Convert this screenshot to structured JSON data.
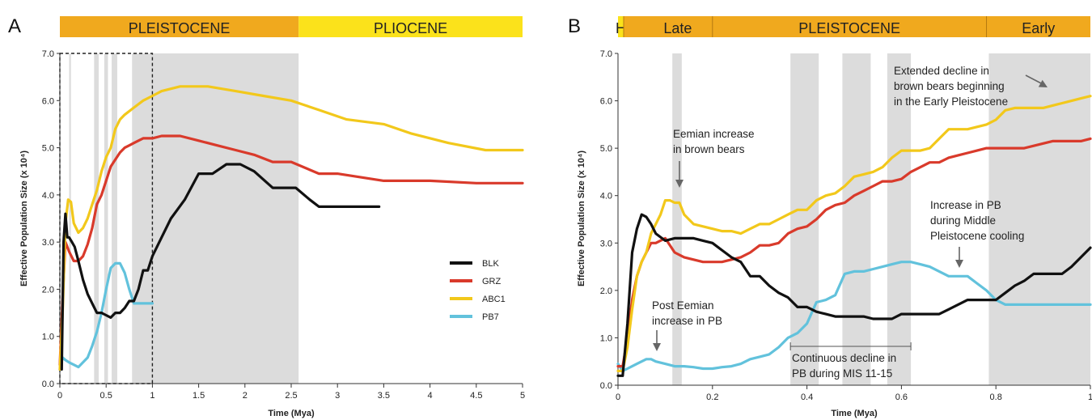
{
  "colors": {
    "BLK": "#111111",
    "GRZ": "#d93a2b",
    "ABC1": "#f2c81b",
    "PB7": "#62c2dc",
    "epoch_orange": "#f0a91e",
    "epoch_yellow": "#fbe21b",
    "shade": "#dcdcdc",
    "arrow": "#666666"
  },
  "chart_data": [
    {
      "panel": "A",
      "type": "line",
      "xlabel": "Time (Mya)",
      "ylabel": "Effective Population Size (x 10⁴)",
      "xlim": [
        0,
        5
      ],
      "ylim": [
        0,
        7
      ],
      "x_ticks": [
        "0",
        "0.5",
        "1",
        "1.5",
        "2",
        "2.5",
        "3",
        "3.5",
        "4",
        "4.5",
        "5"
      ],
      "y_ticks": [
        "0.0",
        "1.0",
        "2.0",
        "3.0",
        "4.0",
        "5.0",
        "6.0",
        "7.0"
      ],
      "epochs": [
        {
          "label": "PLEISTOCENE",
          "from": 0,
          "to": 2.58,
          "color": "orange"
        },
        {
          "label": "PLIOCENE",
          "from": 2.58,
          "to": 5,
          "color": "yellow"
        }
      ],
      "shaded_intervals": [
        [
          0.1,
          0.12
        ],
        [
          0.37,
          0.42
        ],
        [
          0.48,
          0.52
        ],
        [
          0.56,
          0.62
        ],
        [
          0.78,
          2.58
        ]
      ],
      "zoom_box": {
        "x": [
          0,
          1
        ],
        "y": [
          0,
          7
        ]
      },
      "legend": {
        "position": "right",
        "entries": [
          "BLK",
          "GRZ",
          "ABC1",
          "PB7"
        ]
      },
      "series": [
        {
          "name": "BLK",
          "x": [
            0.02,
            0.04,
            0.06,
            0.08,
            0.1,
            0.13,
            0.16,
            0.2,
            0.25,
            0.3,
            0.35,
            0.4,
            0.45,
            0.5,
            0.55,
            0.6,
            0.65,
            0.7,
            0.75,
            0.8,
            0.85,
            0.9,
            0.95,
            1.0,
            1.1,
            1.2,
            1.35,
            1.5,
            1.65,
            1.8,
            1.95,
            2.1,
            2.3,
            2.55,
            2.7,
            2.8,
            3.0,
            3.45
          ],
          "y": [
            0.3,
            3.0,
            3.6,
            3.1,
            3.1,
            3.0,
            2.9,
            2.6,
            2.2,
            1.9,
            1.7,
            1.5,
            1.5,
            1.45,
            1.4,
            1.5,
            1.5,
            1.6,
            1.75,
            1.75,
            2.0,
            2.4,
            2.4,
            2.7,
            3.1,
            3.5,
            3.9,
            4.45,
            4.45,
            4.65,
            4.65,
            4.5,
            4.15,
            4.15,
            3.9,
            3.75,
            3.75,
            3.75
          ]
        },
        {
          "name": "GRZ",
          "x": [
            0.0,
            0.03,
            0.06,
            0.1,
            0.15,
            0.2,
            0.25,
            0.3,
            0.35,
            0.4,
            0.45,
            0.5,
            0.55,
            0.6,
            0.65,
            0.7,
            0.75,
            0.8,
            0.85,
            0.9,
            1.0,
            1.1,
            1.3,
            1.5,
            1.7,
            1.9,
            2.1,
            2.3,
            2.5,
            2.8,
            3.0,
            3.5,
            4.0,
            4.5,
            5.0
          ],
          "y": [
            0.4,
            1.8,
            3.0,
            2.8,
            2.6,
            2.6,
            2.7,
            2.95,
            3.3,
            3.8,
            4.0,
            4.3,
            4.6,
            4.75,
            4.9,
            5.0,
            5.05,
            5.1,
            5.15,
            5.2,
            5.2,
            5.25,
            5.25,
            5.15,
            5.05,
            4.95,
            4.85,
            4.7,
            4.7,
            4.45,
            4.45,
            4.3,
            4.3,
            4.25,
            4.25
          ]
        },
        {
          "name": "ABC1",
          "x": [
            0.0,
            0.03,
            0.06,
            0.09,
            0.12,
            0.15,
            0.2,
            0.25,
            0.3,
            0.35,
            0.4,
            0.45,
            0.5,
            0.55,
            0.6,
            0.65,
            0.7,
            0.8,
            0.9,
            1.0,
            1.1,
            1.3,
            1.6,
            1.9,
            2.2,
            2.5,
            2.8,
            3.1,
            3.5,
            3.8,
            4.2,
            4.6,
            5.0
          ],
          "y": [
            0.3,
            1.5,
            3.4,
            3.9,
            3.85,
            3.4,
            3.2,
            3.3,
            3.5,
            3.8,
            4.1,
            4.5,
            4.8,
            5.0,
            5.4,
            5.6,
            5.7,
            5.85,
            6.0,
            6.1,
            6.2,
            6.3,
            6.3,
            6.2,
            6.1,
            6.0,
            5.8,
            5.6,
            5.5,
            5.3,
            5.1,
            4.95,
            4.95
          ]
        },
        {
          "name": "PB7",
          "x": [
            0.0,
            0.03,
            0.06,
            0.1,
            0.15,
            0.2,
            0.25,
            0.3,
            0.35,
            0.4,
            0.45,
            0.5,
            0.55,
            0.6,
            0.65,
            0.7,
            0.75,
            0.8,
            0.85,
            0.9,
            1.0
          ],
          "y": [
            0.3,
            0.55,
            0.5,
            0.45,
            0.4,
            0.35,
            0.45,
            0.55,
            0.8,
            1.1,
            1.5,
            2.0,
            2.45,
            2.55,
            2.55,
            2.35,
            2.0,
            1.7,
            1.7,
            1.7,
            1.7
          ]
        }
      ]
    },
    {
      "panel": "B",
      "type": "line",
      "xlabel": "Time (Mya)",
      "ylabel": "Effective Population Size (x 10⁴)",
      "xlim": [
        0,
        1
      ],
      "ylim": [
        0,
        7
      ],
      "x_ticks": [
        "0",
        "0.2",
        "0.4",
        "0.6",
        "0.8",
        "1"
      ],
      "y_ticks": [
        "0.0",
        "1.0",
        "2.0",
        "3.0",
        "4.0",
        "5.0",
        "6.0",
        "7.0"
      ],
      "epochs": [
        {
          "label": "H",
          "from": 0,
          "to": 0.012,
          "color": "yellow"
        },
        {
          "label": "Late",
          "from": 0.012,
          "to": 0.2,
          "color": "orange"
        },
        {
          "label": "PLEISTOCENE",
          "from": 0.2,
          "to": 0.78,
          "color": "orange"
        },
        {
          "label": "Early",
          "from": 0.78,
          "to": 1,
          "color": "orange"
        }
      ],
      "shaded_intervals": [
        [
          0.115,
          0.135
        ],
        [
          0.365,
          0.425
        ],
        [
          0.475,
          0.535
        ],
        [
          0.57,
          0.62
        ],
        [
          0.785,
          1.0
        ]
      ],
      "annotations": [
        {
          "text": [
            "Eemian increase",
            "in brown bears"
          ]
        },
        {
          "text": [
            "Extended decline in",
            "brown bears beginning",
            "in the Early Pleistocene"
          ]
        },
        {
          "text": [
            "Increase in PB",
            "during Middle",
            "Pleistocene cooling"
          ]
        },
        {
          "text": [
            "Post Eemian",
            "increase in PB"
          ]
        },
        {
          "text": [
            "Continuous decline in",
            "PB during MIS 11-15"
          ],
          "bracket": [
            0.365,
            0.62
          ]
        }
      ],
      "series": [
        {
          "name": "BLK",
          "x": [
            0.0,
            0.01,
            0.02,
            0.03,
            0.04,
            0.05,
            0.06,
            0.07,
            0.08,
            0.1,
            0.12,
            0.14,
            0.16,
            0.18,
            0.2,
            0.22,
            0.24,
            0.26,
            0.28,
            0.3,
            0.32,
            0.34,
            0.36,
            0.38,
            0.4,
            0.42,
            0.44,
            0.46,
            0.48,
            0.5,
            0.52,
            0.54,
            0.56,
            0.58,
            0.6,
            0.62,
            0.64,
            0.66,
            0.68,
            0.7,
            0.72,
            0.74,
            0.76,
            0.78,
            0.8,
            0.82,
            0.84,
            0.86,
            0.88,
            0.9,
            0.92,
            0.94,
            0.96,
            0.98,
            1.0
          ],
          "y": [
            0.2,
            0.2,
            1.3,
            2.8,
            3.3,
            3.6,
            3.55,
            3.4,
            3.2,
            3.05,
            3.1,
            3.1,
            3.1,
            3.05,
            3.0,
            2.85,
            2.7,
            2.6,
            2.3,
            2.3,
            2.1,
            1.95,
            1.85,
            1.65,
            1.65,
            1.55,
            1.5,
            1.45,
            1.45,
            1.45,
            1.45,
            1.4,
            1.4,
            1.4,
            1.5,
            1.5,
            1.5,
            1.5,
            1.5,
            1.6,
            1.7,
            1.8,
            1.8,
            1.8,
            1.8,
            1.95,
            2.1,
            2.2,
            2.35,
            2.35,
            2.35,
            2.35,
            2.5,
            2.7,
            2.9
          ]
        },
        {
          "name": "GRZ",
          "x": [
            0.0,
            0.01,
            0.02,
            0.03,
            0.04,
            0.05,
            0.06,
            0.07,
            0.08,
            0.1,
            0.12,
            0.14,
            0.16,
            0.18,
            0.2,
            0.22,
            0.24,
            0.26,
            0.28,
            0.3,
            0.32,
            0.34,
            0.36,
            0.38,
            0.4,
            0.42,
            0.44,
            0.46,
            0.48,
            0.5,
            0.52,
            0.54,
            0.56,
            0.58,
            0.6,
            0.62,
            0.64,
            0.66,
            0.68,
            0.7,
            0.72,
            0.74,
            0.76,
            0.78,
            0.8,
            0.82,
            0.84,
            0.86,
            0.88,
            0.9,
            0.92,
            0.94,
            0.96,
            0.98,
            1.0
          ],
          "y": [
            0.4,
            0.4,
            1.0,
            1.8,
            2.3,
            2.6,
            2.8,
            3.0,
            3.0,
            3.1,
            2.8,
            2.7,
            2.65,
            2.6,
            2.6,
            2.6,
            2.65,
            2.7,
            2.8,
            2.95,
            2.95,
            3.0,
            3.2,
            3.3,
            3.35,
            3.5,
            3.7,
            3.8,
            3.85,
            4.0,
            4.1,
            4.2,
            4.3,
            4.3,
            4.35,
            4.5,
            4.6,
            4.7,
            4.7,
            4.8,
            4.85,
            4.9,
            4.95,
            5.0,
            5.0,
            5.0,
            5.0,
            5.0,
            5.05,
            5.1,
            5.15,
            5.15,
            5.15,
            5.15,
            5.2
          ]
        },
        {
          "name": "ABC1",
          "x": [
            0.0,
            0.01,
            0.02,
            0.03,
            0.04,
            0.05,
            0.06,
            0.07,
            0.08,
            0.09,
            0.1,
            0.11,
            0.12,
            0.13,
            0.14,
            0.16,
            0.18,
            0.2,
            0.22,
            0.24,
            0.26,
            0.28,
            0.3,
            0.32,
            0.34,
            0.36,
            0.38,
            0.4,
            0.42,
            0.44,
            0.46,
            0.48,
            0.5,
            0.52,
            0.54,
            0.56,
            0.58,
            0.6,
            0.62,
            0.64,
            0.66,
            0.68,
            0.7,
            0.72,
            0.74,
            0.76,
            0.78,
            0.8,
            0.82,
            0.84,
            0.86,
            0.88,
            0.9,
            0.92,
            0.94,
            0.96,
            0.98,
            1.0
          ],
          "y": [
            0.3,
            0.3,
            0.8,
            1.6,
            2.3,
            2.6,
            2.8,
            3.2,
            3.4,
            3.6,
            3.9,
            3.9,
            3.85,
            3.85,
            3.6,
            3.4,
            3.35,
            3.3,
            3.25,
            3.25,
            3.2,
            3.3,
            3.4,
            3.4,
            3.5,
            3.6,
            3.7,
            3.7,
            3.9,
            4.0,
            4.05,
            4.2,
            4.4,
            4.45,
            4.5,
            4.6,
            4.8,
            4.95,
            4.95,
            4.95,
            5.0,
            5.2,
            5.4,
            5.4,
            5.4,
            5.45,
            5.5,
            5.6,
            5.8,
            5.85,
            5.85,
            5.85,
            5.85,
            5.9,
            5.95,
            6.0,
            6.05,
            6.1
          ]
        },
        {
          "name": "PB7",
          "x": [
            0.0,
            0.01,
            0.02,
            0.03,
            0.04,
            0.05,
            0.06,
            0.07,
            0.08,
            0.1,
            0.12,
            0.14,
            0.16,
            0.18,
            0.2,
            0.22,
            0.24,
            0.26,
            0.28,
            0.3,
            0.32,
            0.34,
            0.36,
            0.38,
            0.4,
            0.42,
            0.44,
            0.46,
            0.48,
            0.5,
            0.52,
            0.54,
            0.56,
            0.58,
            0.6,
            0.62,
            0.64,
            0.66,
            0.68,
            0.7,
            0.72,
            0.74,
            0.76,
            0.78,
            0.8,
            0.82,
            0.84,
            0.86,
            0.88,
            0.9,
            0.92,
            0.94,
            0.96,
            0.98,
            1.0
          ],
          "y": [
            0.45,
            0.3,
            0.35,
            0.4,
            0.45,
            0.5,
            0.55,
            0.55,
            0.5,
            0.45,
            0.4,
            0.4,
            0.38,
            0.35,
            0.35,
            0.38,
            0.4,
            0.45,
            0.55,
            0.6,
            0.65,
            0.8,
            1.0,
            1.1,
            1.3,
            1.75,
            1.8,
            1.9,
            2.35,
            2.4,
            2.4,
            2.45,
            2.5,
            2.55,
            2.6,
            2.6,
            2.55,
            2.5,
            2.4,
            2.3,
            2.3,
            2.3,
            2.15,
            2.0,
            1.8,
            1.7,
            1.7,
            1.7,
            1.7,
            1.7,
            1.7,
            1.7,
            1.7,
            1.7,
            1.7
          ]
        }
      ]
    }
  ]
}
